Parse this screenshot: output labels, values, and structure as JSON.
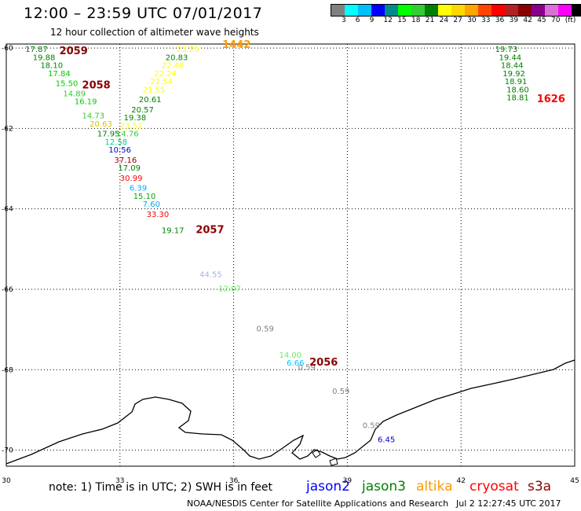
{
  "header": {
    "title": "12:00 – 23:59 UTC 07/01/2017",
    "subtitle": "12 hour collection of altimeter wave heights"
  },
  "legend": {
    "colors": [
      "#808080",
      "#00ffff",
      "#00bfff",
      "#0000ff",
      "#008b8b",
      "#00ff00",
      "#32cd32",
      "#008000",
      "#ffff00",
      "#ffd700",
      "#ffa500",
      "#ff4500",
      "#ff0000",
      "#b22222",
      "#8b0000",
      "#8b008b",
      "#da70d6",
      "#ff00ff",
      "#000000"
    ],
    "labels": [
      "3",
      "6",
      "9",
      "12",
      "15",
      "18",
      "21",
      "24",
      "27",
      "30",
      "33",
      "36",
      "39",
      "42",
      "45",
      "70",
      "(ft)"
    ]
  },
  "map": {
    "x_ticks": [
      "30",
      "33",
      "36",
      "39",
      "42",
      "45"
    ],
    "y_ticks": [
      "-60",
      "-62",
      "-64",
      "-66",
      "-68",
      "-70"
    ],
    "coastline_color": "#000000",
    "labels": [
      {
        "text": "17.87",
        "color": "#008000",
        "lon": 30.5,
        "lat": -60.1
      },
      {
        "text": "19.88",
        "color": "#008000",
        "lon": 30.7,
        "lat": -60.3
      },
      {
        "text": "18.10",
        "color": "#008000",
        "lon": 30.9,
        "lat": -60.5
      },
      {
        "text": "17.84",
        "color": "#00cc00",
        "lon": 31.1,
        "lat": -60.7
      },
      {
        "text": "15.50",
        "color": "#00cc00",
        "lon": 31.3,
        "lat": -60.95
      },
      {
        "text": "14.89",
        "color": "#32cd32",
        "lon": 31.5,
        "lat": -61.2
      },
      {
        "text": "16.19",
        "color": "#00cc00",
        "lon": 31.8,
        "lat": -61.4
      },
      {
        "text": "14.73",
        "color": "#32cd32",
        "lon": 32.0,
        "lat": -61.75
      },
      {
        "text": "20.63",
        "color": "#d4c400",
        "lon": 32.2,
        "lat": -61.95
      },
      {
        "text": "17.95",
        "color": "#008000",
        "lon": 32.4,
        "lat": -62.2
      },
      {
        "text": "12.58",
        "color": "#00cc99",
        "lon": 32.6,
        "lat": -62.4
      },
      {
        "text": "10.56",
        "color": "#0000cd",
        "lon": 32.7,
        "lat": -62.6
      },
      {
        "text": "37.16",
        "color": "#8b0000",
        "lon": 32.85,
        "lat": -62.85
      },
      {
        "text": "17.09",
        "color": "#008000",
        "lon": 32.95,
        "lat": -63.05
      },
      {
        "text": "30.99",
        "color": "#ff0000",
        "lon": 33.0,
        "lat": -63.3
      },
      {
        "text": "6.39",
        "color": "#00aaff",
        "lon": 33.25,
        "lat": -63.55
      },
      {
        "text": "15.10",
        "color": "#00aa00",
        "lon": 33.35,
        "lat": -63.75
      },
      {
        "text": "7.60",
        "color": "#00aaff",
        "lon": 33.6,
        "lat": -63.95
      },
      {
        "text": "33.30",
        "color": "#ff0000",
        "lon": 33.7,
        "lat": -64.2
      },
      {
        "text": "19.17",
        "color": "#008000",
        "lon": 34.1,
        "lat": -64.6
      },
      {
        "text": "44.55",
        "color": "#b0b0e0",
        "lon": 35.1,
        "lat": -65.7
      },
      {
        "text": "12.07",
        "color": "#66ee66",
        "lon": 35.6,
        "lat": -66.05
      },
      {
        "text": "0.59",
        "color": "#808080",
        "lon": 36.6,
        "lat": -67.05
      },
      {
        "text": "14.00",
        "color": "#66ee66",
        "lon": 37.2,
        "lat": -67.7
      },
      {
        "text": "6.66",
        "color": "#00bfff",
        "lon": 37.4,
        "lat": -67.9
      },
      {
        "text": "0.59",
        "color": "#808080",
        "lon": 37.7,
        "lat": -68.0
      },
      {
        "text": "0.59",
        "color": "#808080",
        "lon": 38.6,
        "lat": -68.6
      },
      {
        "text": "0.59",
        "color": "#808080",
        "lon": 39.4,
        "lat": -69.45
      },
      {
        "text": "6.45",
        "color": "#0000cd",
        "lon": 39.8,
        "lat": -69.8
      },
      {
        "text": "23.29",
        "color": "#ffff00",
        "lon": 34.5,
        "lat": -60.1
      },
      {
        "text": "20.83",
        "color": "#008000",
        "lon": 34.2,
        "lat": -60.3
      },
      {
        "text": "22.46",
        "color": "#ffff00",
        "lon": 34.1,
        "lat": -60.5
      },
      {
        "text": "22.24",
        "color": "#ffff00",
        "lon": 33.9,
        "lat": -60.7
      },
      {
        "text": "22.54",
        "color": "#ffff00",
        "lon": 33.8,
        "lat": -60.9
      },
      {
        "text": "21.55",
        "color": "#ffff00",
        "lon": 33.6,
        "lat": -61.1
      },
      {
        "text": "20.61",
        "color": "#008000",
        "lon": 33.5,
        "lat": -61.35
      },
      {
        "text": "20.57",
        "color": "#008000",
        "lon": 33.3,
        "lat": -61.6
      },
      {
        "text": "19.38",
        "color": "#008000",
        "lon": 33.1,
        "lat": -61.8
      },
      {
        "text": "23.52",
        "color": "#ffff00",
        "lon": 33.0,
        "lat": -62.0
      },
      {
        "text": "14.76",
        "color": "#32cd32",
        "lon": 32.9,
        "lat": -62.2
      },
      {
        "text": "19.73",
        "color": "#008000",
        "lon": 42.9,
        "lat": -60.1
      },
      {
        "text": "19.44",
        "color": "#008000",
        "lon": 43.0,
        "lat": -60.3
      },
      {
        "text": "18.44",
        "color": "#008000",
        "lon": 43.05,
        "lat": -60.5
      },
      {
        "text": "19.92",
        "color": "#008000",
        "lon": 43.1,
        "lat": -60.7
      },
      {
        "text": "18.91",
        "color": "#008000",
        "lon": 43.15,
        "lat": -60.9
      },
      {
        "text": "18.60",
        "color": "#008000",
        "lon": 43.2,
        "lat": -61.1
      },
      {
        "text": "18.81",
        "color": "#008000",
        "lon": 43.2,
        "lat": -61.3
      }
    ],
    "orbit_labels": [
      {
        "text": "2059",
        "color": "#8b0000",
        "lon": 31.4,
        "lat": -60.15
      },
      {
        "text": "2058",
        "color": "#8b0000",
        "lon": 32.0,
        "lat": -61.0
      },
      {
        "text": "1442",
        "color": "#ff9900",
        "lon": 35.7,
        "lat": -60.0
      },
      {
        "text": "2057",
        "color": "#8b0000",
        "lon": 35.0,
        "lat": -64.6
      },
      {
        "text": "2056",
        "color": "#8b0000",
        "lon": 38.0,
        "lat": -67.9
      },
      {
        "text": "1626",
        "color": "#ff0000",
        "lon": 44.0,
        "lat": -61.35
      }
    ]
  },
  "footer": {
    "note": "note: 1) Time is in UTC; 2) SWH is in feet",
    "satellites": [
      {
        "name": "jason2",
        "color": "#0000ff"
      },
      {
        "name": "jason3",
        "color": "#008000"
      },
      {
        "name": "altika",
        "color": "#ff9900"
      },
      {
        "name": "cryosat",
        "color": "#ff0000"
      },
      {
        "name": "s3a",
        "color": "#8b0000"
      }
    ],
    "credit": "NOAA/NESDIS Center for Satellite Applications and Research",
    "timestamp": "Jul  2 12:27:45 UTC 2017"
  }
}
